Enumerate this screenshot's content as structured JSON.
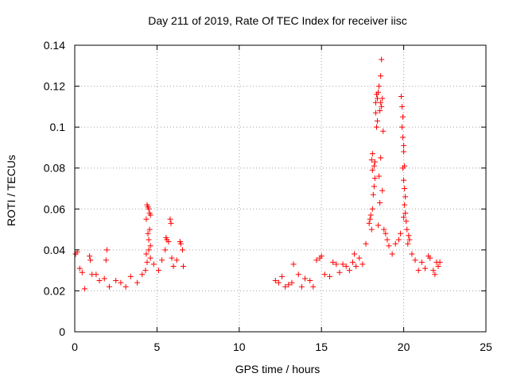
{
  "chart_data": {
    "type": "scatter",
    "title": "Day 211 of 2019, Rate Of TEC Index for receiver iisc",
    "xlabel": "GPS time / hours",
    "ylabel": "ROTI / TECUs",
    "xlim": [
      0,
      25
    ],
    "ylim": [
      0,
      0.14
    ],
    "xticks": [
      0,
      5,
      10,
      15,
      20,
      25
    ],
    "xtick_labels": [
      "0",
      "5",
      "10",
      "15",
      "20",
      "25"
    ],
    "yticks": [
      0,
      0.02,
      0.04,
      0.06,
      0.08,
      0.1,
      0.12,
      0.14
    ],
    "ytick_labels": [
      "0",
      "0.02",
      "0.04",
      "0.06",
      "0.08",
      "0.1",
      "0.12",
      "0.14"
    ],
    "grid": true,
    "marker": "+",
    "marker_color": "#ff0000",
    "series": [
      {
        "name": "ROTI",
        "points": [
          [
            0.05,
            0.038
          ],
          [
            0.15,
            0.039
          ],
          [
            0.3,
            0.031
          ],
          [
            0.45,
            0.029
          ],
          [
            0.6,
            0.021
          ],
          [
            0.9,
            0.037
          ],
          [
            0.95,
            0.035
          ],
          [
            1.05,
            0.028
          ],
          [
            1.3,
            0.028
          ],
          [
            1.5,
            0.025
          ],
          [
            1.8,
            0.026
          ],
          [
            1.9,
            0.035
          ],
          [
            1.95,
            0.04
          ],
          [
            2.1,
            0.022
          ],
          [
            2.5,
            0.025
          ],
          [
            2.8,
            0.024
          ],
          [
            3.1,
            0.022
          ],
          [
            3.4,
            0.027
          ],
          [
            3.8,
            0.024
          ],
          [
            4.1,
            0.028
          ],
          [
            4.3,
            0.03
          ],
          [
            4.35,
            0.055
          ],
          [
            4.4,
            0.062
          ],
          [
            4.45,
            0.061
          ],
          [
            4.5,
            0.06
          ],
          [
            4.55,
            0.058
          ],
          [
            4.6,
            0.057
          ],
          [
            4.55,
            0.05
          ],
          [
            4.45,
            0.048
          ],
          [
            4.5,
            0.045
          ],
          [
            4.6,
            0.042
          ],
          [
            4.5,
            0.04
          ],
          [
            4.35,
            0.038
          ],
          [
            4.6,
            0.036
          ],
          [
            4.4,
            0.034
          ],
          [
            4.8,
            0.033
          ],
          [
            5.1,
            0.03
          ],
          [
            5.3,
            0.035
          ],
          [
            5.5,
            0.04
          ],
          [
            5.55,
            0.046
          ],
          [
            5.6,
            0.045
          ],
          [
            5.7,
            0.044
          ],
          [
            5.8,
            0.055
          ],
          [
            5.85,
            0.053
          ],
          [
            5.9,
            0.036
          ],
          [
            6.0,
            0.032
          ],
          [
            6.2,
            0.035
          ],
          [
            6.4,
            0.044
          ],
          [
            6.45,
            0.043
          ],
          [
            6.55,
            0.04
          ],
          [
            6.6,
            0.032
          ],
          [
            12.2,
            0.025
          ],
          [
            12.4,
            0.024
          ],
          [
            12.6,
            0.027
          ],
          [
            12.8,
            0.022
          ],
          [
            13.0,
            0.023
          ],
          [
            13.2,
            0.024
          ],
          [
            13.3,
            0.033
          ],
          [
            13.6,
            0.028
          ],
          [
            13.8,
            0.022
          ],
          [
            14.0,
            0.026
          ],
          [
            14.3,
            0.025
          ],
          [
            14.5,
            0.022
          ],
          [
            14.7,
            0.035
          ],
          [
            14.9,
            0.036
          ],
          [
            15.0,
            0.037
          ],
          [
            15.2,
            0.028
          ],
          [
            15.5,
            0.027
          ],
          [
            15.7,
            0.034
          ],
          [
            15.9,
            0.033
          ],
          [
            16.1,
            0.029
          ],
          [
            16.3,
            0.033
          ],
          [
            16.5,
            0.032
          ],
          [
            16.7,
            0.03
          ],
          [
            16.9,
            0.034
          ],
          [
            17.0,
            0.038
          ],
          [
            17.1,
            0.032
          ],
          [
            17.3,
            0.036
          ],
          [
            17.5,
            0.033
          ],
          [
            17.7,
            0.043
          ],
          [
            17.9,
            0.053
          ],
          [
            17.95,
            0.055
          ],
          [
            18.0,
            0.057
          ],
          [
            18.05,
            0.05
          ],
          [
            18.1,
            0.06
          ],
          [
            18.15,
            0.067
          ],
          [
            18.2,
            0.071
          ],
          [
            18.25,
            0.075
          ],
          [
            18.1,
            0.079
          ],
          [
            18.05,
            0.084
          ],
          [
            18.1,
            0.087
          ],
          [
            18.2,
            0.081
          ],
          [
            18.25,
            0.083
          ],
          [
            18.3,
            0.112
          ],
          [
            18.35,
            0.116
          ],
          [
            18.4,
            0.114
          ],
          [
            18.3,
            0.107
          ],
          [
            18.4,
            0.103
          ],
          [
            18.35,
            0.1
          ],
          [
            18.45,
            0.117
          ],
          [
            18.5,
            0.12
          ],
          [
            18.55,
            0.108
          ],
          [
            18.6,
            0.112
          ],
          [
            18.65,
            0.11
          ],
          [
            18.6,
            0.125
          ],
          [
            18.65,
            0.133
          ],
          [
            18.7,
            0.114
          ],
          [
            18.75,
            0.098
          ],
          [
            18.6,
            0.085
          ],
          [
            18.5,
            0.076
          ],
          [
            18.7,
            0.069
          ],
          [
            18.55,
            0.063
          ],
          [
            18.45,
            0.052
          ],
          [
            18.8,
            0.05
          ],
          [
            18.9,
            0.048
          ],
          [
            19.0,
            0.045
          ],
          [
            19.1,
            0.042
          ],
          [
            19.3,
            0.038
          ],
          [
            19.5,
            0.043
          ],
          [
            19.7,
            0.045
          ],
          [
            19.8,
            0.048
          ],
          [
            19.85,
            0.115
          ],
          [
            19.9,
            0.11
          ],
          [
            19.95,
            0.105
          ],
          [
            19.9,
            0.1
          ],
          [
            19.95,
            0.095
          ],
          [
            20.0,
            0.091
          ],
          [
            20.0,
            0.088
          ],
          [
            20.05,
            0.081
          ],
          [
            19.95,
            0.08
          ],
          [
            20.0,
            0.074
          ],
          [
            20.05,
            0.07
          ],
          [
            20.1,
            0.066
          ],
          [
            20.05,
            0.062
          ],
          [
            20.1,
            0.058
          ],
          [
            20.0,
            0.056
          ],
          [
            20.15,
            0.054
          ],
          [
            20.2,
            0.05
          ],
          [
            20.3,
            0.047
          ],
          [
            20.35,
            0.045
          ],
          [
            20.25,
            0.043
          ],
          [
            20.5,
            0.038
          ],
          [
            20.7,
            0.035
          ],
          [
            20.9,
            0.03
          ],
          [
            21.1,
            0.034
          ],
          [
            21.3,
            0.031
          ],
          [
            21.5,
            0.037
          ],
          [
            21.6,
            0.036
          ],
          [
            21.8,
            0.03
          ],
          [
            21.9,
            0.028
          ],
          [
            22.0,
            0.034
          ],
          [
            22.1,
            0.032
          ],
          [
            22.2,
            0.034
          ]
        ]
      }
    ]
  }
}
